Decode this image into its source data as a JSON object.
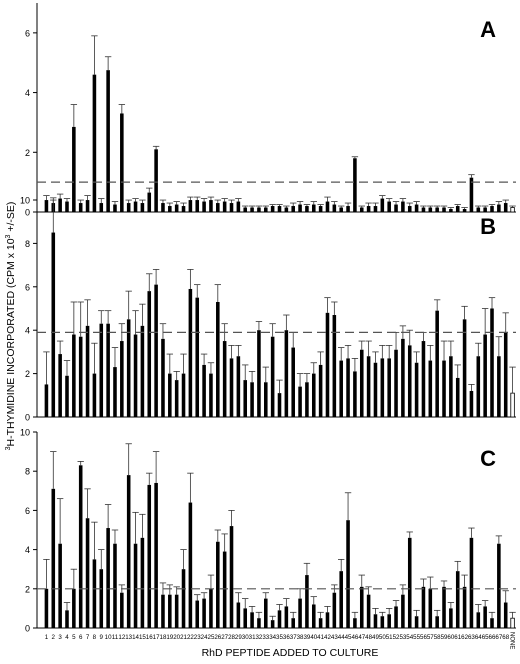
{
  "figure": {
    "ylabel_prefix": "3",
    "ylabel_main": "H-THYMIDINE INCORPORATED (CPM x 10",
    "ylabel_exp": "3",
    "ylabel_suffix": " +/-SE)",
    "xlabel": "RhD PEPTIDE ADDED TO CULTURE"
  },
  "colors": {
    "bar": "#000000",
    "none_bar": "#ffffff",
    "reference_line": "#555555"
  },
  "chart_data": [
    {
      "type": "bar",
      "panel_label": "A",
      "categories": [
        "1",
        "2",
        "3",
        "4",
        "5",
        "6",
        "7",
        "8",
        "9",
        "10",
        "11",
        "12",
        "13",
        "14",
        "15",
        "16",
        "17",
        "18",
        "19",
        "20",
        "21",
        "22",
        "23",
        "24",
        "25",
        "26",
        "27",
        "28",
        "29",
        "30",
        "31",
        "32",
        "33",
        "34",
        "35",
        "36",
        "37",
        "38",
        "39",
        "40",
        "41",
        "42",
        "43",
        "44",
        "45",
        "46",
        "47",
        "48",
        "49",
        "50",
        "51",
        "52",
        "53",
        "54",
        "55",
        "56",
        "57",
        "58",
        "59",
        "60",
        "61",
        "62",
        "63",
        "64",
        "65",
        "66",
        "67",
        "68",
        "NONE"
      ],
      "values": [
        0.4,
        0.3,
        0.45,
        0.35,
        2.85,
        0.3,
        0.4,
        4.6,
        0.3,
        4.75,
        0.25,
        3.3,
        0.3,
        0.35,
        0.3,
        0.65,
        2.1,
        0.3,
        0.2,
        0.25,
        0.2,
        0.4,
        0.4,
        0.35,
        0.4,
        0.3,
        0.35,
        0.3,
        0.35,
        0.15,
        0.15,
        0.15,
        0.15,
        0.2,
        0.2,
        0.15,
        0.2,
        0.25,
        0.2,
        0.25,
        0.2,
        0.35,
        0.25,
        0.15,
        0.2,
        1.8,
        0.15,
        0.2,
        0.2,
        0.45,
        0.35,
        0.25,
        0.35,
        0.2,
        0.25,
        0.15,
        0.15,
        0.15,
        0.15,
        0.1,
        0.2,
        0.1,
        1.15,
        0.15,
        0.15,
        0.2,
        0.25,
        0.3,
        0.15
      ],
      "errors": [
        0.15,
        0.1,
        0.15,
        0.1,
        0.75,
        0.1,
        0.15,
        1.3,
        0.15,
        0.45,
        0.1,
        0.3,
        0.1,
        0.1,
        0.1,
        0.15,
        0.1,
        0.1,
        0.1,
        0.1,
        0.1,
        0.1,
        0.1,
        0.1,
        0.1,
        0.1,
        0.1,
        0.1,
        0.1,
        0.05,
        0.05,
        0.05,
        0.05,
        0.05,
        0.05,
        0.05,
        0.1,
        0.1,
        0.05,
        0.1,
        0.05,
        0.15,
        0.1,
        0.05,
        0.1,
        0.05,
        0.05,
        0.1,
        0.1,
        0.1,
        0.1,
        0.1,
        0.1,
        0.1,
        0.1,
        0.05,
        0.05,
        0.05,
        0.05,
        0.05,
        0.05,
        0.05,
        0.1,
        0.05,
        0.05,
        0.05,
        0.1,
        0.1,
        0.05
      ],
      "reference_line": 1.0,
      "ylim": [
        0,
        7
      ],
      "yticks": [
        0,
        2,
        4,
        6
      ]
    },
    {
      "type": "bar",
      "panel_label": "B",
      "categories": [
        "1",
        "2",
        "3",
        "4",
        "5",
        "6",
        "7",
        "8",
        "9",
        "10",
        "11",
        "12",
        "13",
        "14",
        "15",
        "16",
        "17",
        "18",
        "19",
        "20",
        "21",
        "22",
        "23",
        "24",
        "25",
        "26",
        "27",
        "28",
        "29",
        "30",
        "31",
        "32",
        "33",
        "34",
        "35",
        "36",
        "37",
        "38",
        "39",
        "40",
        "41",
        "42",
        "43",
        "44",
        "45",
        "46",
        "47",
        "48",
        "49",
        "50",
        "51",
        "52",
        "53",
        "54",
        "55",
        "56",
        "57",
        "58",
        "59",
        "60",
        "61",
        "62",
        "63",
        "64",
        "65",
        "66",
        "67",
        "68",
        "NONE"
      ],
      "values": [
        1.5,
        8.5,
        2.9,
        1.9,
        3.8,
        3.7,
        4.2,
        2.0,
        4.3,
        4.3,
        2.3,
        3.5,
        4.5,
        3.8,
        4.2,
        5.8,
        6.1,
        3.6,
        2.0,
        1.7,
        2.0,
        5.9,
        5.5,
        2.4,
        2.0,
        5.3,
        3.5,
        2.7,
        2.8,
        1.7,
        1.6,
        4.0,
        1.6,
        3.7,
        1.1,
        4.0,
        3.2,
        1.4,
        1.6,
        2.0,
        2.4,
        4.8,
        4.7,
        2.6,
        2.7,
        2.1,
        3.1,
        2.8,
        2.5,
        2.7,
        2.7,
        3.1,
        3.6,
        3.3,
        2.5,
        3.5,
        2.6,
        4.9,
        2.6,
        2.8,
        1.8,
        4.5,
        1.2,
        2.8,
        3.8,
        5.0,
        2.8,
        3.9,
        1.1
      ],
      "errors": [
        1.5,
        1.6,
        0.6,
        0.7,
        1.5,
        1.6,
        1.2,
        1.4,
        0.6,
        0.6,
        0.9,
        0.8,
        1.3,
        1.1,
        1.0,
        0.8,
        0.7,
        0.7,
        0.9,
        0.4,
        0.9,
        0.9,
        0.6,
        0.5,
        0.5,
        0.8,
        0.8,
        0.6,
        0.5,
        0.7,
        0.5,
        0.4,
        0.7,
        0.6,
        0.6,
        0.7,
        0.7,
        0.6,
        0.4,
        0.5,
        0.6,
        0.7,
        0.6,
        0.6,
        0.6,
        0.6,
        0.4,
        0.7,
        0.5,
        0.6,
        0.6,
        0.8,
        0.6,
        0.7,
        0.5,
        0.4,
        0.7,
        0.5,
        0.9,
        0.7,
        0.6,
        0.6,
        0.3,
        0.6,
        1.2,
        0.5,
        0.9,
        0.9,
        1.2
      ],
      "reference_line": 3.9,
      "ylim": [
        0,
        10
      ],
      "yticks": [
        0,
        2,
        4,
        6,
        8,
        10
      ]
    },
    {
      "type": "bar",
      "panel_label": "C",
      "categories": [
        "1",
        "2",
        "3",
        "4",
        "5",
        "6",
        "7",
        "8",
        "9",
        "10",
        "11",
        "12",
        "13",
        "14",
        "15",
        "16",
        "17",
        "18",
        "19",
        "20",
        "21",
        "22",
        "23",
        "24",
        "25",
        "26",
        "27",
        "28",
        "29",
        "30",
        "31",
        "32",
        "33",
        "34",
        "35",
        "36",
        "37",
        "38",
        "39",
        "40",
        "41",
        "42",
        "43",
        "44",
        "45",
        "46",
        "47",
        "48",
        "49",
        "50",
        "51",
        "52",
        "53",
        "54",
        "55",
        "56",
        "57",
        "58",
        "59",
        "60",
        "61",
        "62",
        "63",
        "64",
        "65",
        "66",
        "67",
        "68",
        "NONE"
      ],
      "values": [
        2.0,
        7.1,
        4.3,
        0.9,
        2.0,
        8.3,
        5.6,
        3.5,
        3.0,
        5.1,
        4.3,
        1.8,
        7.8,
        4.3,
        4.6,
        7.3,
        7.4,
        1.7,
        1.7,
        1.7,
        3.0,
        6.4,
        1.4,
        1.5,
        2.0,
        4.4,
        3.9,
        5.2,
        1.3,
        1.0,
        0.8,
        0.5,
        1.5,
        0.4,
        0.9,
        1.1,
        0.5,
        1.5,
        2.7,
        1.2,
        0.5,
        0.8,
        1.8,
        2.9,
        5.5,
        0.5,
        2.1,
        1.7,
        0.7,
        0.6,
        0.7,
        1.1,
        1.7,
        4.6,
        0.6,
        2.1,
        2.0,
        0.6,
        2.1,
        1.0,
        2.9,
        2.1,
        4.6,
        0.8,
        1.1,
        0.5,
        4.3,
        1.3,
        0.5
      ],
      "errors": [
        1.5,
        1.9,
        2.3,
        0.4,
        1.0,
        0.2,
        1.5,
        1.9,
        1.0,
        1.2,
        0.7,
        0.4,
        1.6,
        1.6,
        1.2,
        0.6,
        1.6,
        0.6,
        0.5,
        0.4,
        1.0,
        1.5,
        0.3,
        0.3,
        0.7,
        0.6,
        0.9,
        0.8,
        0.5,
        0.5,
        0.3,
        0.3,
        0.3,
        0.2,
        0.3,
        0.4,
        0.3,
        0.5,
        0.6,
        0.4,
        0.3,
        0.3,
        0.4,
        0.6,
        1.4,
        0.3,
        0.6,
        0.4,
        0.3,
        0.2,
        0.3,
        0.3,
        0.5,
        0.3,
        0.3,
        0.4,
        0.6,
        0.3,
        0.3,
        0.3,
        0.5,
        0.6,
        0.5,
        0.4,
        0.3,
        0.3,
        0.4,
        0.6,
        0.3
      ],
      "reference_line": 2.0,
      "ylim": [
        0,
        10
      ],
      "yticks": [
        0,
        2,
        4,
        6,
        8,
        10
      ]
    }
  ]
}
